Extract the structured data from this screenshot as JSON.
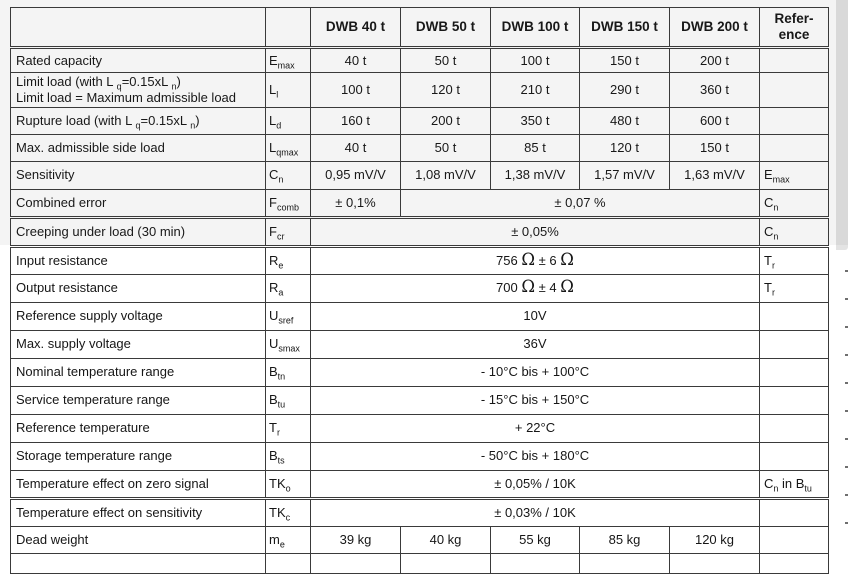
{
  "table": {
    "header": {
      "models": [
        "DWB 40 t",
        "DWB 50 t",
        "DWB 100 t",
        "DWB 150 t",
        "DWB 200 t"
      ],
      "reference": "Refer-\nence"
    },
    "rows": [
      {
        "label": "Rated capacity",
        "sym": "E~max~",
        "cells": [
          {
            "t": "40 t",
            "s": 1
          },
          {
            "t": "50 t",
            "s": 1
          },
          {
            "t": "100 t",
            "s": 1
          },
          {
            "t": "150 t",
            "s": 1
          },
          {
            "t": "200 t",
            "s": 1
          }
        ],
        "ref": ""
      },
      {
        "label": "Limit load (with L ~q~=0.15xL ~n~)\nLimit load = Maximum admissible load",
        "sym": "L~l~",
        "cells": [
          {
            "t": "100 t",
            "s": 1
          },
          {
            "t": "120 t",
            "s": 1
          },
          {
            "t": "210 t",
            "s": 1
          },
          {
            "t": "290 t",
            "s": 1
          },
          {
            "t": "360 t",
            "s": 1
          }
        ],
        "ref": ""
      },
      {
        "label": "Rupture load (with L ~q~=0.15xL ~n~)",
        "sym": "L~d~",
        "cells": [
          {
            "t": "160 t",
            "s": 1
          },
          {
            "t": "200 t",
            "s": 1
          },
          {
            "t": "350 t",
            "s": 1
          },
          {
            "t": "480 t",
            "s": 1
          },
          {
            "t": "600 t",
            "s": 1
          }
        ],
        "ref": ""
      },
      {
        "label": "Max. admissible side load",
        "sym": "L~qmax~",
        "cells": [
          {
            "t": "40 t",
            "s": 1
          },
          {
            "t": "50 t",
            "s": 1
          },
          {
            "t": "85 t",
            "s": 1
          },
          {
            "t": "120 t",
            "s": 1
          },
          {
            "t": "150 t",
            "s": 1
          }
        ],
        "ref": ""
      },
      {
        "label": "Sensitivity",
        "sym": "C~n~",
        "cells": [
          {
            "t": "0,95 mV/V",
            "s": 1
          },
          {
            "t": "1,08 mV/V",
            "s": 1
          },
          {
            "t": "1,38 mV/V",
            "s": 1
          },
          {
            "t": "1,57 mV/V",
            "s": 1
          },
          {
            "t": "1,63 mV/V",
            "s": 1
          }
        ],
        "ref": "E~max~"
      },
      {
        "label": "Combined error",
        "sym": "F~comb~",
        "cells": [
          {
            "t": "± 0,1%",
            "s": 1
          },
          {
            "t": "± 0,07 %",
            "s": 4
          }
        ],
        "ref": "C~n~"
      },
      {
        "label": "Creeping under load (30 min)",
        "sym": "F~cr~",
        "cells": [
          {
            "t": "± 0,05%",
            "s": 5
          }
        ],
        "ref": "C~n~"
      },
      {
        "label": "Input resistance",
        "sym": "R~e~",
        "cells": [
          {
            "t": "756 ^Ω^ ± 6 ^Ω^",
            "s": 5
          }
        ],
        "ref": "T~r~"
      },
      {
        "label": "Output resistance",
        "sym": "R~a~",
        "cells": [
          {
            "t": "700 ^Ω^ ± 4 ^Ω^",
            "s": 5
          }
        ],
        "ref": "T~r~"
      },
      {
        "label": "Reference supply voltage",
        "sym": "U~sref~",
        "cells": [
          {
            "t": "10V",
            "s": 5
          }
        ],
        "ref": ""
      },
      {
        "label": "Max. supply voltage",
        "sym": "U~smax~",
        "cells": [
          {
            "t": "36V",
            "s": 5
          }
        ],
        "ref": ""
      },
      {
        "label": "Nominal temperature range",
        "sym": "B~tn~",
        "cells": [
          {
            "t": "- 10°C bis + 100°C",
            "s": 5
          }
        ],
        "ref": ""
      },
      {
        "label": "Service temperature range",
        "sym": "B~tu~",
        "cells": [
          {
            "t": "- 15°C bis + 150°C",
            "s": 5
          }
        ],
        "ref": ""
      },
      {
        "label": "Reference temperature",
        "sym": "T~r~",
        "cells": [
          {
            "t": "+ 22°C",
            "s": 5
          }
        ],
        "ref": ""
      },
      {
        "label": "Storage temperature range",
        "sym": "B~ts~",
        "cells": [
          {
            "t": "- 50°C bis + 180°C",
            "s": 5
          }
        ],
        "ref": ""
      },
      {
        "label": "Temperature effect on zero signal",
        "sym": "TK~o~",
        "cells": [
          {
            "t": "± 0,05% / 10K",
            "s": 5
          }
        ],
        "ref": "C~n~ in B~tu~"
      },
      {
        "label": "Temperature effect on sensitivity",
        "sym": "TK~c~",
        "cells": [
          {
            "t": "± 0,03% / 10K",
            "s": 5
          }
        ],
        "ref": ""
      },
      {
        "label": "Dead weight",
        "sym": "m~e~",
        "cells": [
          {
            "t": "39 kg",
            "s": 1
          },
          {
            "t": "40 kg",
            "s": 1
          },
          {
            "t": "55 kg",
            "s": 1
          },
          {
            "t": "85 kg",
            "s": 1
          },
          {
            "t": "120 kg",
            "s": 1
          }
        ],
        "ref": ""
      }
    ]
  }
}
